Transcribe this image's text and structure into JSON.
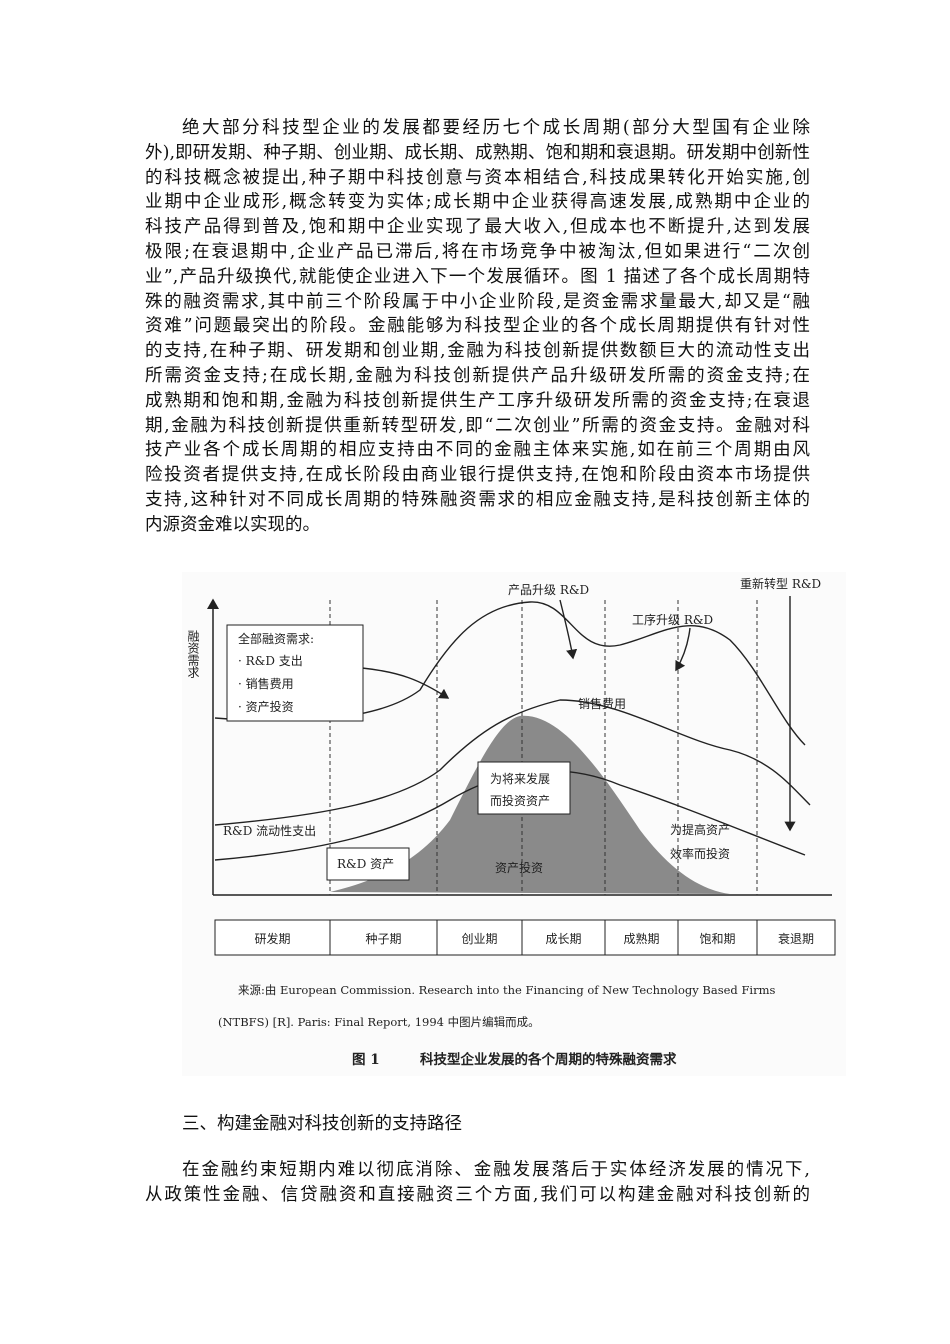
{
  "paragraphs": [
    {
      "lines": [
        "绝大部分科技型企业的发展都要经历七个成长周期(部分大型国有企业除",
        "外),即研发期、种子期、创业期、成长期、成熟期、饱和期和衰退期。研发期中创新性",
        "的科技概念被提出,种子期中科技创意与资本相结合,科技成果转化开始实施,创",
        "业期中企业成形,概念转变为实体;成长期中企业获得高速发展,成熟期中企业的",
        "科技产品得到普及,饱和期中企业实现了最大收入,但成本也不断提升,达到发展",
        "极限;在衰退期中,企业产品已滞后,将在市场竞争中被淘汰,但如果进行“二次创",
        "业”,产品升级换代,就能使企业进入下一个发展循环。图 1 描述了各个成长周期特",
        "殊的融资需求,其中前三个阶段属于中小企业阶段,是资金需求量最大,却又是“融",
        "资难”问题最突出的阶段。金融能够为科技型企业的各个成长周期提供有针对性",
        "的支持,在种子期、研发期和创业期,金融为科技创新提供数额巨大的流动性支出",
        "所需资金支持;在成长期,金融为科技创新提供产品升级研发所需的资金支持;在",
        "成熟期和饱和期,金融为科技创新提供生产工序升级研发所需的资金支持;在衰退",
        "期,金融为科技创新提供重新转型研发,即“二次创业”所需的资金支持。金融对科",
        "技产业各个成长周期的相应支持由不同的金融主体来实施,如在前三个周期由风",
        "险投资者提供支持,在成长阶段由商业银行提供支持,在饱和阶段由资本市场提供",
        "支持,这种针对不同成长周期的特殊融资需求的相应金融支持,是科技创新主体的",
        "内源资金难以实现的。"
      ]
    },
    {
      "lines": [
        "在金融约束短期内难以彻底消除、金融发展落后于实体经济发展的情况下,",
        "从政策性金融、信贷融资和直接融资三个方面,我们可以构建金融对科技创新的"
      ]
    }
  ],
  "figure": {
    "y_axis_label": "融资需求",
    "legend": {
      "title": "全部融资需求:",
      "items": [
        "· R&D 支出",
        "· 销售费用",
        "· 资产投资"
      ]
    },
    "labels": [
      "产品升级 R&D",
      "重新转型 R&D",
      "工序升级 R&D",
      "销售费用",
      "为将来发展",
      "而投资资产",
      "R&D 流动性支出",
      "R&D 资产",
      "资产投资",
      "为提高资产",
      "效率而投资"
    ],
    "stages": [
      "研发期",
      "种子期",
      "创业期",
      "成长期",
      "成熟期",
      "饱和期",
      "衰退期"
    ],
    "source": [
      "来源:由 European Commission. Research into the Financing of New Technology Based Firms",
      "(NTBFS) [R]. Paris: Final Report, 1994 中图片编辑而成。"
    ],
    "caption": {
      "number": "图 1",
      "title": "科技型企业发展的各个周期的特殊融资需求"
    }
  },
  "section_heading": "三、构建金融对科技创新的支持路径"
}
